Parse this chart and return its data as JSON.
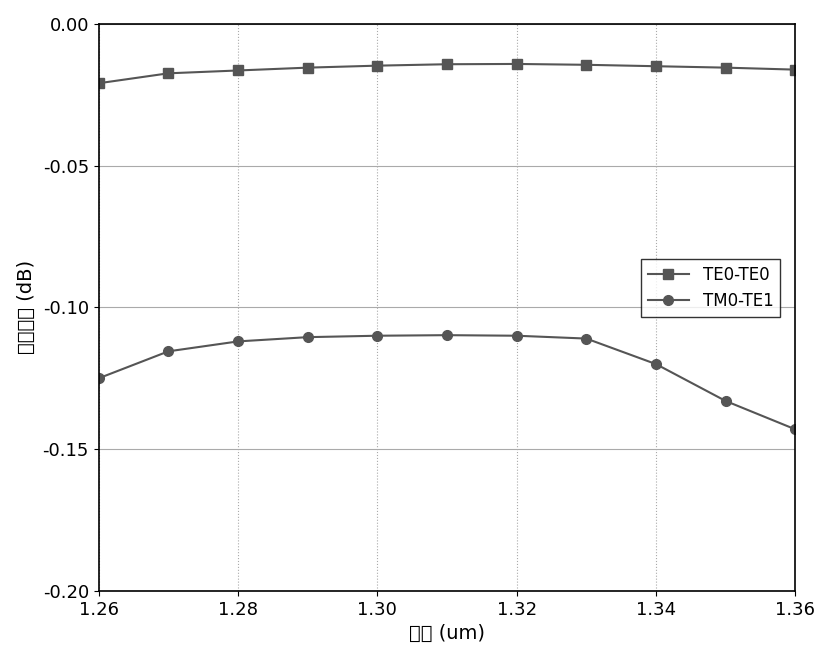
{
  "x": [
    1.26,
    1.27,
    1.28,
    1.29,
    1.3,
    1.31,
    1.32,
    1.33,
    1.34,
    1.35,
    1.36
  ],
  "te0_te0": [
    -0.021,
    -0.0175,
    -0.0165,
    -0.0155,
    -0.0148,
    -0.0143,
    -0.0142,
    -0.0145,
    -0.015,
    -0.0155,
    -0.0162
  ],
  "tm0_te1": [
    -0.125,
    -0.1155,
    -0.112,
    -0.1105,
    -0.11,
    -0.1098,
    -0.11,
    -0.111,
    -0.12,
    -0.133,
    -0.143
  ],
  "xlabel": "波长 (um)",
  "ylabel": "转换效率 (dB)",
  "xlim": [
    1.26,
    1.36
  ],
  "ylim": [
    -0.2,
    0.0
  ],
  "xticks": [
    1.26,
    1.28,
    1.3,
    1.32,
    1.34,
    1.36
  ],
  "yticks": [
    0.0,
    -0.05,
    -0.1,
    -0.15,
    -0.2
  ],
  "line_color": "#555555",
  "marker_square": "s",
  "marker_circle": "o",
  "legend_te0": "TE0-TE0",
  "legend_tm0": "TM0-TE1",
  "grid_color": "#aaaaaa",
  "background_color": "#ffffff",
  "linewidth": 1.5,
  "markersize": 7,
  "tick_fontsize": 13,
  "label_fontsize": 14,
  "legend_fontsize": 12
}
